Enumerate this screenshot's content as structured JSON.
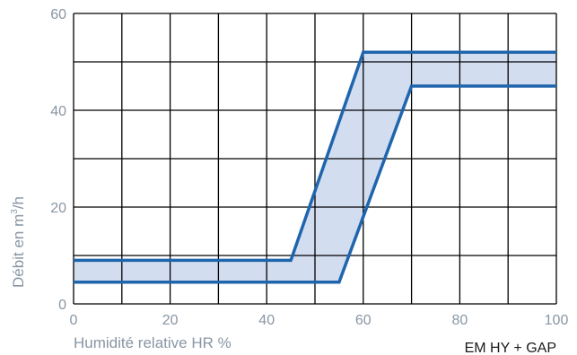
{
  "chart_data": {
    "type": "area",
    "xlabel": "Humidité relative HR %",
    "ylabel_main": "Débit en m",
    "ylabel_sup": "3",
    "ylabel_end": "/h",
    "caption": "EM HY + GAP",
    "xlim": [
      0,
      100
    ],
    "ylim": [
      0,
      60
    ],
    "x_ticks": [
      0,
      20,
      40,
      60,
      80,
      100
    ],
    "y_ticks": [
      0,
      20,
      40,
      60
    ],
    "grid": true,
    "grid_x_step": 10,
    "grid_y_step": 10,
    "series": [
      {
        "values_x": [
          0,
          45,
          60,
          100
        ],
        "values_y": [
          9,
          9,
          52,
          52
        ]
      },
      {
        "values_x": [
          0,
          55,
          70,
          100
        ],
        "values_y": [
          4.5,
          4.5,
          45,
          45
        ]
      }
    ],
    "colors": {
      "line": "#1f65ad",
      "fill": "#d3ddf0",
      "grid": "#000000",
      "text": "#8896a4"
    }
  }
}
